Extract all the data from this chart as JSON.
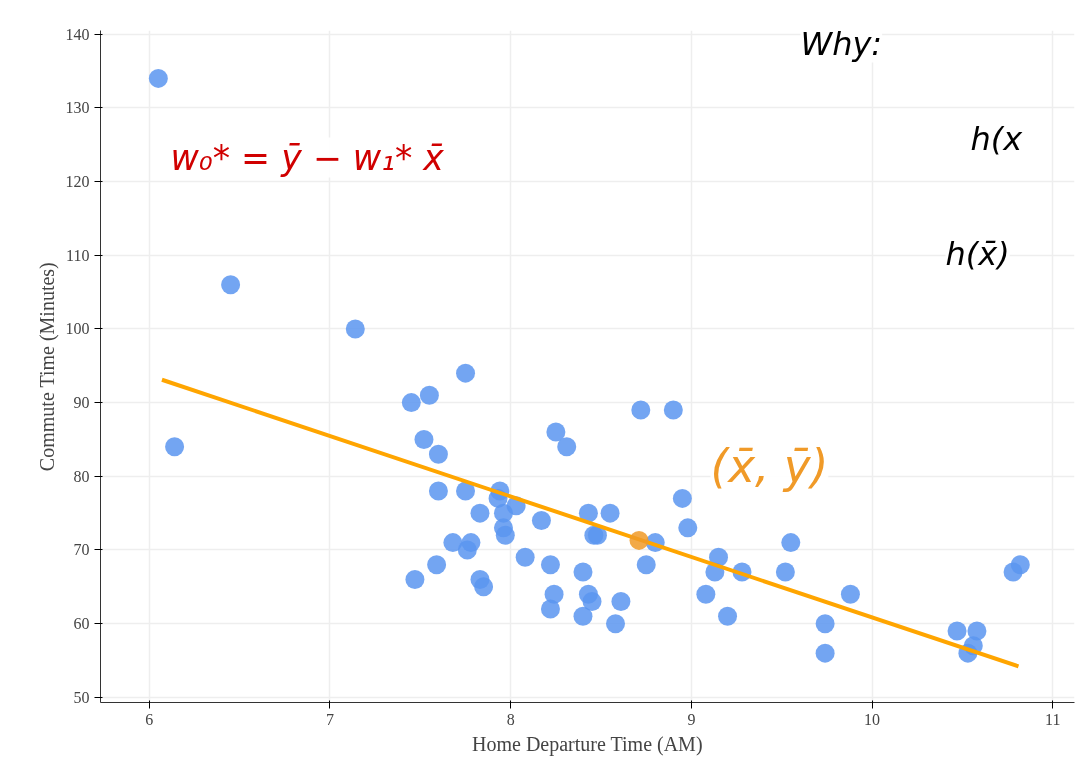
{
  "chart_data": {
    "type": "scatter",
    "xlabel": "Home Departure Time (AM)",
    "ylabel": "Commute Time (Minutes)",
    "xlim": [
      5.73,
      11.12
    ],
    "ylim": [
      49.3,
      140.5
    ],
    "xticks": [
      6,
      7,
      8,
      9,
      10,
      11
    ],
    "yticks": [
      50,
      60,
      70,
      80,
      90,
      100,
      110,
      120,
      130,
      140
    ],
    "grid": true,
    "marker": "circle",
    "annotations": [
      "w₀* = ȳ − w₁* x̄",
      "Why:",
      "h(x",
      "h(x̄)",
      "(x̄, ȳ)"
    ],
    "series": [
      {
        "type": "scatter",
        "color": "#5b95f0",
        "x": [
          6.05,
          6.14,
          6.45,
          7.14,
          7.45,
          7.55,
          7.52,
          7.6,
          7.75,
          7.6,
          7.75,
          7.68,
          7.78,
          7.76,
          7.59,
          7.47,
          7.83,
          7.85,
          7.83,
          7.93,
          7.94,
          7.96,
          7.96,
          7.97,
          8.03,
          8.08,
          8.17,
          8.25,
          8.31,
          8.22,
          8.24,
          8.22,
          8.4,
          8.4,
          8.43,
          8.43,
          8.45,
          8.46,
          8.48,
          8.55,
          8.58,
          8.61,
          8.72,
          8.9,
          8.75,
          8.8,
          8.95,
          8.98,
          9.08,
          9.13,
          9.15,
          9.2,
          9.28,
          9.52,
          9.55,
          9.74,
          9.74,
          9.88,
          10.47,
          10.58,
          10.56,
          10.53,
          10.78,
          10.82
        ],
        "values": [
          134,
          84,
          106,
          100,
          90,
          91,
          85,
          83,
          94,
          78,
          78,
          71,
          71,
          70,
          68,
          66,
          66,
          65,
          75,
          77,
          78,
          75,
          73,
          72,
          76,
          69,
          74,
          86,
          84,
          68,
          64,
          62,
          67,
          61,
          75,
          64,
          63,
          72,
          72,
          75,
          60,
          63,
          89,
          89,
          68,
          71,
          77,
          73,
          64,
          67,
          69,
          61,
          67,
          67,
          71,
          60,
          56,
          64,
          59,
          59,
          57,
          56,
          67,
          68
        ]
      },
      {
        "type": "line",
        "marker": "none",
        "color": "#ffa500",
        "x": [
          6.07,
          10.81
        ],
        "values": [
          93.1,
          54.2
        ]
      },
      {
        "type": "scatter",
        "color": "#f09a28",
        "x": [
          8.71
        ],
        "values": [
          71.3
        ]
      }
    ]
  }
}
